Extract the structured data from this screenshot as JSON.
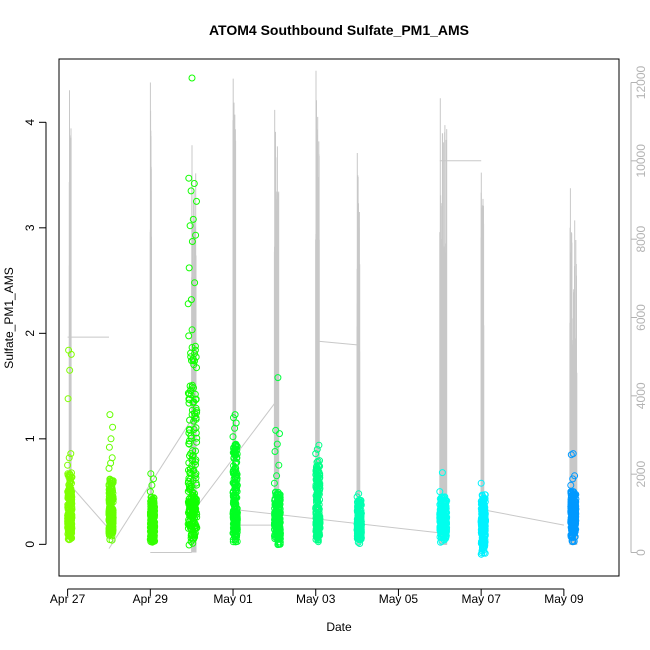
{
  "chart_data": {
    "type": "scatter",
    "title": "ATOM4 Southbound Sulfate_PM1_AMS",
    "xlabel": "Date",
    "ylabel": "Sulfate_PM1_AMS",
    "xlim": [
      "2023-04-26T19:00",
      "2023-05-10T08:00"
    ],
    "ylim": [
      -0.3,
      4.6
    ],
    "y2lim": [
      -600,
      12600
    ],
    "x_ticks": [
      {
        "date": "2023-04-27",
        "label": "Apr 27"
      },
      {
        "date": "2023-04-29",
        "label": "Apr 29"
      },
      {
        "date": "2023-05-01",
        "label": "May 01"
      },
      {
        "date": "2023-05-03",
        "label": "May 03"
      },
      {
        "date": "2023-05-05",
        "label": "May 05"
      },
      {
        "date": "2023-05-07",
        "label": "May 07"
      },
      {
        "date": "2023-05-09",
        "label": "May 09"
      }
    ],
    "y_ticks": [
      0,
      1,
      2,
      3,
      4
    ],
    "y2_ticks": [
      0,
      2000,
      4000,
      6000,
      8000,
      10000,
      12000
    ],
    "grid": false,
    "series": [
      {
        "date": "2023-04-27",
        "color": "#7fff00",
        "start_h": 0,
        "end_h": 2.5,
        "low": 0.02,
        "median": 0.28,
        "high": 0.68,
        "outliers": [
          0.75,
          0.82,
          0.86,
          1.38,
          1.65,
          1.8,
          1.84
        ]
      },
      {
        "date": "2023-04-28",
        "color": "#66ff00",
        "start_h": 0,
        "end_h": 2.5,
        "low": 0.03,
        "median": 0.28,
        "high": 0.65,
        "outliers": [
          0.72,
          0.77,
          0.82,
          0.92,
          1.0,
          1.11,
          1.23
        ]
      },
      {
        "date": "2023-04-29",
        "color": "#33ff00",
        "start_h": 0,
        "end_h": 2.5,
        "low": 0.01,
        "median": 0.2,
        "high": 0.45,
        "outliers": [
          0.5,
          0.56,
          0.62,
          0.67
        ]
      },
      {
        "date": "2023-04-30",
        "color": "#11ff00",
        "start_h": -2,
        "end_h": 3,
        "low": -0.03,
        "median": 0.4,
        "high": 2.05,
        "outliers": [
          2.28,
          2.32,
          2.48,
          2.62,
          2.87,
          2.93,
          3.02,
          3.08,
          3.25,
          3.35,
          3.42,
          3.47,
          4.42
        ]
      },
      {
        "date": "2023-05-01",
        "color": "#00ff22",
        "start_h": 0,
        "end_h": 2.5,
        "low": 0.0,
        "median": 0.3,
        "high": 0.95,
        "outliers": [
          1.02,
          1.1,
          1.15,
          1.2,
          1.23
        ]
      },
      {
        "date": "2023-05-02",
        "color": "#00ff3c",
        "start_h": 0,
        "end_h": 3.5,
        "low": -0.02,
        "median": 0.2,
        "high": 0.5,
        "outliers": [
          0.58,
          0.65,
          0.75,
          0.88,
          0.95,
          1.05,
          1.08,
          1.58
        ]
      },
      {
        "date": "2023-05-03",
        "color": "#00ff88",
        "start_h": 0,
        "end_h": 2.5,
        "low": 0.0,
        "median": 0.25,
        "high": 0.8,
        "outliers": [
          0.86,
          0.9,
          0.94
        ]
      },
      {
        "date": "2023-05-04",
        "color": "#00ffb0",
        "start_h": 0,
        "end_h": 2.5,
        "low": 0.0,
        "median": 0.18,
        "high": 0.42,
        "outliers": [
          0.45,
          0.48
        ]
      },
      {
        "date": "2023-05-06",
        "color": "#00ffee",
        "start_h": 0,
        "end_h": 4,
        "low": 0.0,
        "median": 0.25,
        "high": 0.45,
        "outliers": [
          0.5,
          0.68
        ]
      },
      {
        "date": "2023-05-07",
        "color": "#00f2ff",
        "start_h": 0,
        "end_h": 2.5,
        "low": -0.12,
        "median": 0.22,
        "high": 0.48,
        "outliers": [
          0.58
        ]
      },
      {
        "date": "2023-05-09",
        "color": "#0099ff",
        "start_h": 4,
        "end_h": 7,
        "low": 0.0,
        "median": 0.3,
        "high": 0.5,
        "outliers": [
          0.56,
          0.62,
          0.65,
          0.85,
          0.86
        ]
      }
    ],
    "line_series": {
      "color": "#c8c8c8",
      "axis": "right",
      "spikes": [
        {
          "date": "2023-04-27",
          "start_h": 1.0,
          "end_h": 2.0,
          "low": 300,
          "high": 11800
        },
        {
          "date": "2023-04-29",
          "start_h": 0.0,
          "end_h": 0.6,
          "low": 200,
          "high": 12000
        },
        {
          "date": "2023-04-30",
          "start_h": 0.0,
          "end_h": 2.5,
          "low": 0,
          "high": 10400
        },
        {
          "date": "2023-05-01",
          "start_h": 0.0,
          "end_h": 1.5,
          "low": 300,
          "high": 12100
        },
        {
          "date": "2023-05-02",
          "start_h": 0.0,
          "end_h": 2.5,
          "low": 300,
          "high": 11300
        },
        {
          "date": "2023-05-03",
          "start_h": 0.0,
          "end_h": 2.0,
          "low": 300,
          "high": 12300
        },
        {
          "date": "2023-05-04",
          "start_h": 0.0,
          "end_h": 1.5,
          "low": 200,
          "high": 10200
        },
        {
          "date": "2023-05-06",
          "start_h": 0.0,
          "end_h": 4.0,
          "low": 200,
          "high": 11600
        },
        {
          "date": "2023-05-07",
          "start_h": 0.0,
          "end_h": 1.5,
          "low": 200,
          "high": 9700
        },
        {
          "date": "2023-05-09",
          "start_h": 3.5,
          "end_h": 7.5,
          "low": 200,
          "high": 9300
        }
      ],
      "connectors": [
        [
          [
            "2023-04-27T00:00",
            1800
          ],
          [
            "2023-04-28T00:00",
            600
          ]
        ],
        [
          [
            "2023-04-27T00:00",
            5500
          ],
          [
            "2023-04-28T00:00",
            5500
          ]
        ],
        [
          [
            "2023-04-29T00:00",
            0
          ],
          [
            "2023-04-30T00:00",
            0
          ]
        ],
        [
          [
            "2023-04-28T00:00",
            100
          ],
          [
            "2023-04-30T00:00",
            3400
          ]
        ],
        [
          [
            "2023-04-30T00:00",
            1000
          ],
          [
            "2023-05-02T00:00",
            3800
          ]
        ],
        [
          [
            "2023-05-01T00:00",
            1100
          ],
          [
            "2023-05-06T00:00",
            500
          ]
        ],
        [
          [
            "2023-05-01T00:00",
            700
          ],
          [
            "2023-05-02T00:00",
            700
          ]
        ],
        [
          [
            "2023-05-03T00:00",
            5400
          ],
          [
            "2023-05-04T00:00",
            5300
          ]
        ],
        [
          [
            "2023-05-06T00:00",
            10000
          ],
          [
            "2023-05-07T00:00",
            10000
          ]
        ],
        [
          [
            "2023-05-07T00:00",
            1100
          ],
          [
            "2023-05-09T00:00",
            700
          ]
        ]
      ]
    }
  }
}
